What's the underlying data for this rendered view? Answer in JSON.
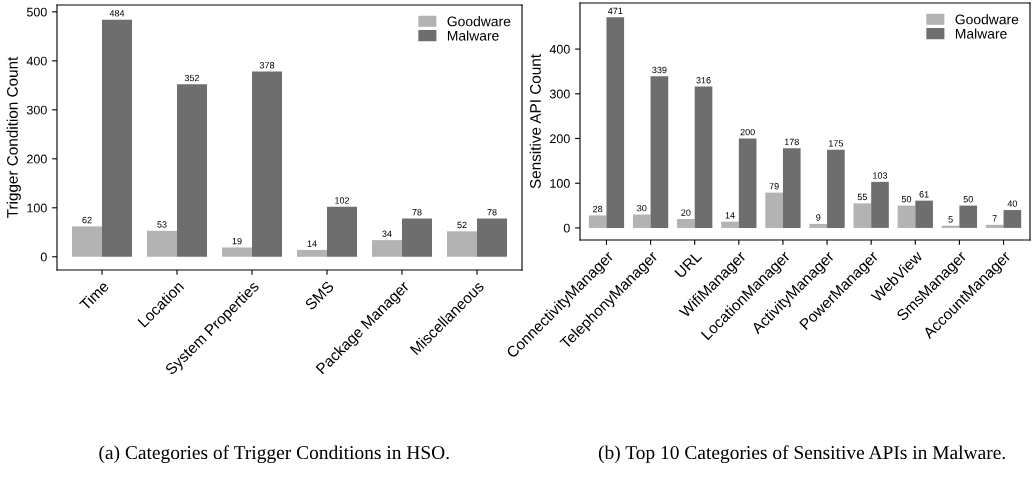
{
  "chart_data": [
    {
      "type": "bar",
      "ylabel": "Trigger Condition Count",
      "categories": [
        "Time",
        "Location",
        "System Properties",
        "SMS",
        "Package Manager",
        "Miscellaneous"
      ],
      "series": [
        {
          "name": "Goodware",
          "color": "#b3b3b3",
          "values": [
            62,
            53,
            19,
            14,
            34,
            52
          ]
        },
        {
          "name": "Malware",
          "color": "#6e6e6e",
          "values": [
            484,
            352,
            378,
            102,
            78,
            78
          ]
        }
      ],
      "ylim": [
        -27,
        514
      ],
      "yticks": [
        0,
        100,
        200,
        300,
        400,
        500
      ],
      "grid": false,
      "legend": "top right",
      "data_labels": true,
      "annotations": [
        "(a) Categories of Trigger Conditions in HSO."
      ]
    },
    {
      "type": "bar",
      "ylabel": "Sensitive API Count",
      "categories": [
        "ConnectivityManager",
        "TelephonyManager",
        "URL",
        "WifiManager",
        "LocationManager",
        "ActivityManager",
        "PowerManager",
        "WebView",
        "SmsManager",
        "AccountManager"
      ],
      "series": [
        {
          "name": "Goodware",
          "color": "#b3b3b3",
          "values": [
            28,
            30,
            20,
            14,
            79,
            9,
            55,
            50,
            5,
            7
          ]
        },
        {
          "name": "Malware",
          "color": "#6e6e6e",
          "values": [
            471,
            339,
            316,
            200,
            178,
            175,
            103,
            61,
            50,
            40
          ]
        }
      ],
      "ylim": [
        -27,
        503
      ],
      "yticks": [
        0,
        100,
        200,
        300,
        400
      ],
      "grid": false,
      "legend": "top right",
      "data_labels": true,
      "annotations": [
        "(b) Top 10 Categories of Sensitive APIs in Malware."
      ]
    }
  ]
}
